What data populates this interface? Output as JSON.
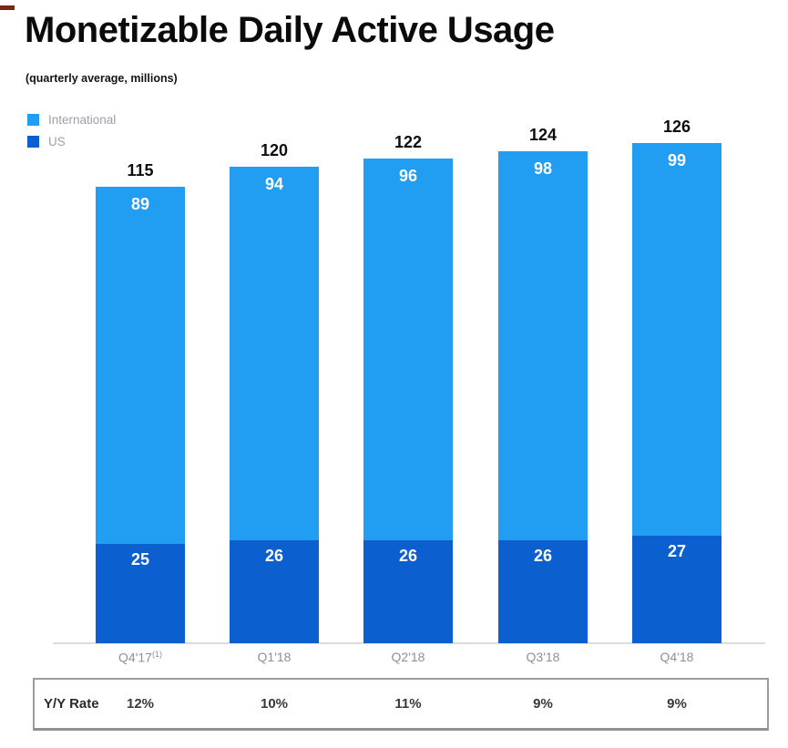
{
  "header": {
    "title": "Monetizable Daily Active Usage",
    "subtitle": "(quarterly average, millions)"
  },
  "legend": {
    "items": [
      {
        "label": "International",
        "color": "#219df2"
      },
      {
        "label": "US",
        "color": "#0b5fcf"
      }
    ]
  },
  "chart_data": {
    "type": "bar",
    "stacked": true,
    "title": "Monetizable Daily Active Usage",
    "subtitle": "(quarterly average, millions)",
    "categories": [
      "Q4'17",
      "Q1'18",
      "Q2'18",
      "Q3'18",
      "Q4'18"
    ],
    "category_footnotes": [
      "(1)",
      "",
      "",
      "",
      ""
    ],
    "series": [
      {
        "name": "US",
        "color": "#0b5fcf",
        "values": [
          25,
          26,
          26,
          26,
          27
        ]
      },
      {
        "name": "International",
        "color": "#219df2",
        "values": [
          89,
          94,
          96,
          98,
          99
        ]
      }
    ],
    "totals": [
      115,
      120,
      122,
      124,
      126
    ],
    "xlabel": "",
    "ylabel": "",
    "ylim": [
      0,
      130
    ],
    "grid": false,
    "legend_position": "top-left",
    "colors": {
      "axis_line": "#dcdcdc",
      "tick_label": "#8a9299",
      "total_label": "#0d0d0d",
      "in_bar_label": "#ffffff"
    }
  },
  "footer_table": {
    "row_label": "Y/Y Rate",
    "values": [
      "12%",
      "10%",
      "11%",
      "9%",
      "9%"
    ]
  }
}
